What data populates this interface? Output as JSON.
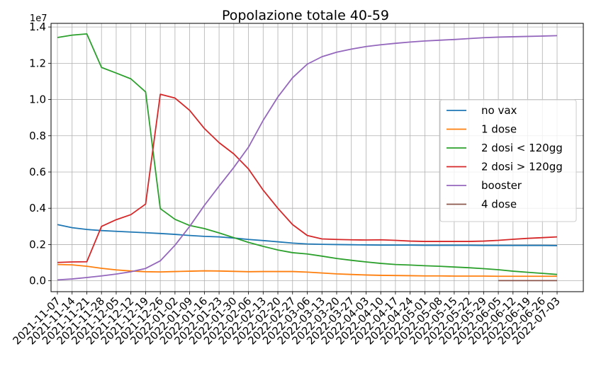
{
  "chart_data": {
    "type": "line",
    "title": "Popolazione totale 40-59",
    "y_offset_label": "1e7",
    "ylim": [
      -0.06,
      1.42
    ],
    "yticks": [
      "0.0",
      "0.2",
      "0.4",
      "0.6",
      "0.8",
      "1.0",
      "1.2",
      "1.4"
    ],
    "ytick_values": [
      0.0,
      0.2,
      0.4,
      0.6,
      0.8,
      1.0,
      1.2,
      1.4
    ],
    "grid": true,
    "legend_position": "center-right",
    "x": [
      "2021-11-07",
      "2021-11-14",
      "2021-11-21",
      "2021-11-28",
      "2021-12-05",
      "2021-12-12",
      "2021-12-19",
      "2021-12-26",
      "2022-01-02",
      "2022-01-09",
      "2022-01-16",
      "2022-01-23",
      "2022-01-30",
      "2022-02-06",
      "2022-02-13",
      "2022-02-20",
      "2022-02-27",
      "2022-03-06",
      "2022-03-13",
      "2022-03-20",
      "2022-03-27",
      "2022-04-03",
      "2022-04-10",
      "2022-04-17",
      "2022-04-24",
      "2022-05-01",
      "2022-05-08",
      "2022-05-15",
      "2022-05-22",
      "2022-05-29",
      "2022-06-05",
      "2022-06-12",
      "2022-06-19",
      "2022-06-26",
      "2022-07-03"
    ],
    "series": [
      {
        "name": "no vax",
        "color": "#1f77b4",
        "values": [
          0.31,
          0.293,
          0.283,
          0.277,
          0.273,
          0.269,
          0.265,
          0.261,
          0.256,
          0.25,
          0.245,
          0.242,
          0.236,
          0.228,
          0.222,
          0.215,
          0.208,
          0.203,
          0.201,
          0.2,
          0.199,
          0.198,
          0.197,
          0.197,
          0.197,
          0.196,
          0.196,
          0.196,
          0.196,
          0.195,
          0.195,
          0.195,
          0.195,
          0.195,
          0.194
        ]
      },
      {
        "name": "1 dose",
        "color": "#ff7f0e",
        "values": [
          0.09,
          0.088,
          0.08,
          0.069,
          0.06,
          0.054,
          0.05,
          0.049,
          0.051,
          0.053,
          0.055,
          0.054,
          0.052,
          0.05,
          0.051,
          0.051,
          0.051,
          0.048,
          0.043,
          0.038,
          0.035,
          0.032,
          0.03,
          0.029,
          0.028,
          0.027,
          0.027,
          0.026,
          0.026,
          0.026,
          0.025,
          0.025,
          0.025,
          0.025,
          0.025
        ]
      },
      {
        "name": "2 dosi < 120gg",
        "color": "#2ca02c",
        "values": [
          1.342,
          1.355,
          1.362,
          1.177,
          1.146,
          1.114,
          1.042,
          0.398,
          0.339,
          0.305,
          0.288,
          0.264,
          0.238,
          0.212,
          0.19,
          0.17,
          0.155,
          0.148,
          0.136,
          0.123,
          0.113,
          0.104,
          0.096,
          0.09,
          0.087,
          0.083,
          0.08,
          0.076,
          0.072,
          0.067,
          0.061,
          0.053,
          0.047,
          0.041,
          0.035
        ]
      },
      {
        "name": "2 dosi > 120gg",
        "color": "#d62728",
        "values": [
          0.101,
          0.104,
          0.105,
          0.3,
          0.337,
          0.365,
          0.423,
          1.029,
          1.008,
          0.94,
          0.84,
          0.762,
          0.7,
          0.617,
          0.5,
          0.4,
          0.31,
          0.25,
          0.231,
          0.228,
          0.226,
          0.225,
          0.226,
          0.223,
          0.219,
          0.217,
          0.217,
          0.217,
          0.217,
          0.219,
          0.223,
          0.229,
          0.234,
          0.238,
          0.242
        ]
      },
      {
        "name": "booster",
        "color": "#9467bd",
        "values": [
          0.005,
          0.01,
          0.018,
          0.027,
          0.037,
          0.05,
          0.068,
          0.11,
          0.196,
          0.3,
          0.416,
          0.522,
          0.625,
          0.737,
          0.885,
          1.014,
          1.12,
          1.195,
          1.236,
          1.261,
          1.278,
          1.292,
          1.302,
          1.31,
          1.317,
          1.323,
          1.327,
          1.331,
          1.336,
          1.341,
          1.344,
          1.346,
          1.348,
          1.35,
          1.352
        ]
      },
      {
        "name": "4 dose",
        "color": "#8c564b",
        "values": [
          null,
          null,
          null,
          null,
          null,
          null,
          null,
          null,
          null,
          null,
          null,
          null,
          null,
          null,
          null,
          null,
          null,
          null,
          null,
          null,
          null,
          null,
          null,
          null,
          null,
          null,
          null,
          null,
          null,
          null,
          0.001,
          0.001,
          0.001,
          0.001,
          0.001
        ]
      }
    ]
  }
}
